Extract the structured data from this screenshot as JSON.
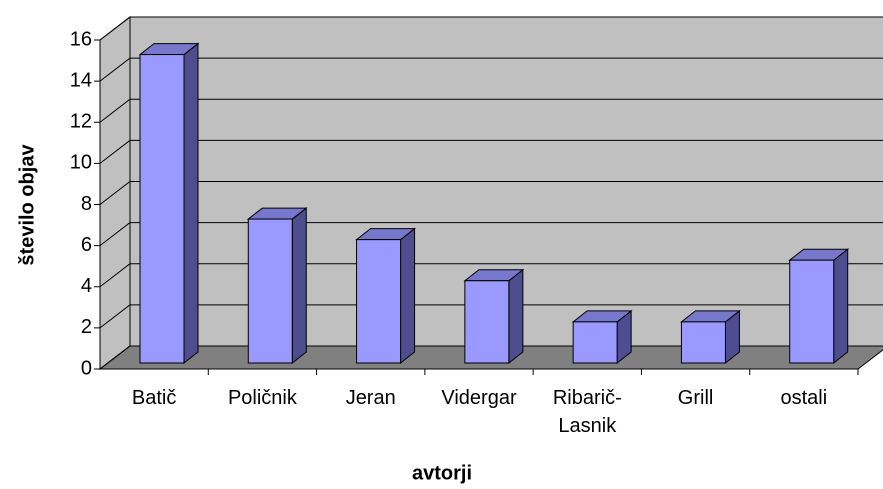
{
  "chart_data": {
    "type": "bar3d",
    "x_label": "avtorji",
    "y_label": "število objav",
    "categories": [
      "Batič",
      "Poličnik",
      "Jeran",
      "Vidergar",
      "Ribarič-Lasnik",
      "Grill",
      "ostali"
    ],
    "values": [
      15,
      7,
      6,
      4,
      2,
      2,
      5
    ],
    "color": "#9999ff",
    "ylim": [
      0,
      16
    ],
    "yticks": [
      0,
      2,
      4,
      6,
      8,
      10,
      12,
      14,
      16
    ],
    "grid": true
  }
}
